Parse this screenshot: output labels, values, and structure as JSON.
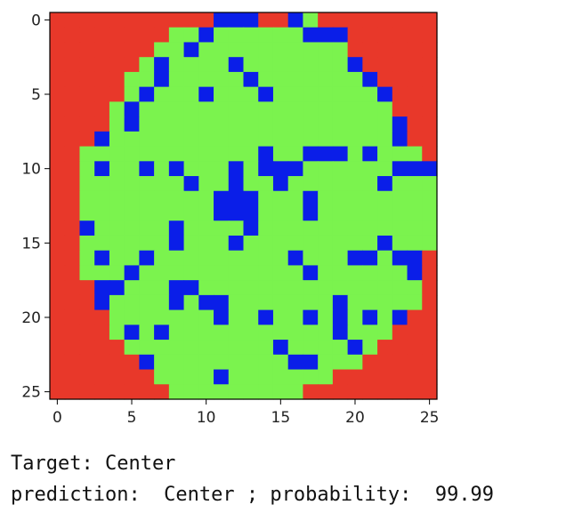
{
  "chart_data": {
    "type": "heatmap",
    "title": "",
    "xlabel": "",
    "ylabel": "",
    "rows": 26,
    "cols": 26,
    "colors": {
      "0": "#e8382a",
      "1": "#7bf34e",
      "2": "#0a1ee8"
    },
    "xticks": [
      0,
      5,
      10,
      15,
      20,
      25
    ],
    "yticks": [
      0,
      5,
      10,
      15,
      20,
      25
    ],
    "grid": [
      "00000000000222002100000000",
      "00000000112111111222000000",
      "00000001121111111111000000",
      "00000012111121111111200000",
      "00000112111112111111120000",
      "00000121112111211111112000",
      "00001211111111111111111000",
      "00001211111111111111111200",
      "00021111111111111111111200",
      "00111111111111211222121110",
      "00121121211121222111111222",
      "00111111121121121111112111",
      "00111111111222111211111111",
      "00111111111222111211111111",
      "00211111211112111111111111",
      "00111111211121111111112111",
      "00121121111111112111221220",
      "00111211111111111211111120",
      "00022111221111111111111110",
      "00021111212211111112111110",
      "00001111111211211212121200",
      "00001212111111111112111000",
      "00000111111111121111210000",
      "00000021111111112211100000",
      "00000001111211111110000000",
      "00000000111111111000000000"
    ]
  },
  "output": {
    "target": "Target: Center",
    "prediction": "prediction:  Center ; probability:  99.99"
  }
}
